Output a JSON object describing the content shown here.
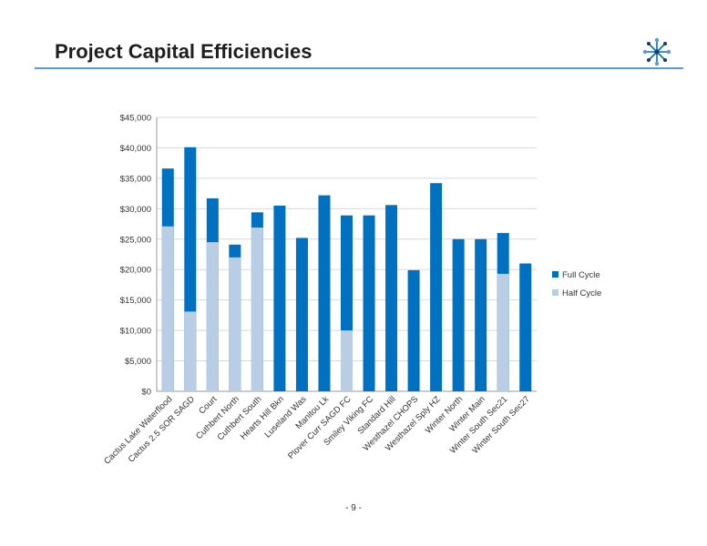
{
  "header": {
    "title": "Project Capital Efficiencies"
  },
  "footer": {
    "page_number": "- 9 -"
  },
  "logo": {
    "icon": "snowflake-icon",
    "colors": [
      "#0070c0",
      "#5b9bd5",
      "#1f3864"
    ]
  },
  "chart_data": {
    "type": "bar",
    "stacked": false,
    "overlapped": true,
    "title": "",
    "xlabel": "",
    "ylabel": "",
    "ylim": [
      0,
      45000
    ],
    "yticks": [
      0,
      5000,
      10000,
      15000,
      20000,
      25000,
      30000,
      35000,
      40000,
      45000
    ],
    "ytick_labels": [
      "$0",
      "$5,000",
      "$10,000",
      "$15,000",
      "$20,000",
      "$25,000",
      "$30,000",
      "$35,000",
      "$40,000",
      "$45,000"
    ],
    "grid": true,
    "legend_position": "right",
    "categories": [
      "Cactus Lake Waterflood",
      "Cactus 2.5 SOR SAGD",
      "Court",
      "Cuthbert North",
      "Cuthbert South",
      "Hearts Hill Bkn",
      "Luseland Was",
      "Manitou Lk",
      "Plover Curr SAGD FC",
      "Smiley Viking FC",
      "Standard Hill",
      "Westhazel CHOPS",
      "Westhazel Sply HZ",
      "Winter North",
      "Winter Main",
      "Winter South Sec21",
      "Winter South Sec27"
    ],
    "series": [
      {
        "name": "Full Cycle",
        "color": "#0070c0",
        "values": [
          36600,
          40100,
          31700,
          24100,
          29400,
          30500,
          25200,
          32200,
          28900,
          28900,
          30600,
          19900,
          34200,
          25000,
          25000,
          26000,
          21000
        ]
      },
      {
        "name": "Half Cycle",
        "color": "#b9cde5",
        "values": [
          27100,
          13100,
          24500,
          22000,
          26900,
          null,
          null,
          null,
          10000,
          null,
          null,
          null,
          null,
          null,
          null,
          19300,
          null
        ]
      }
    ]
  }
}
